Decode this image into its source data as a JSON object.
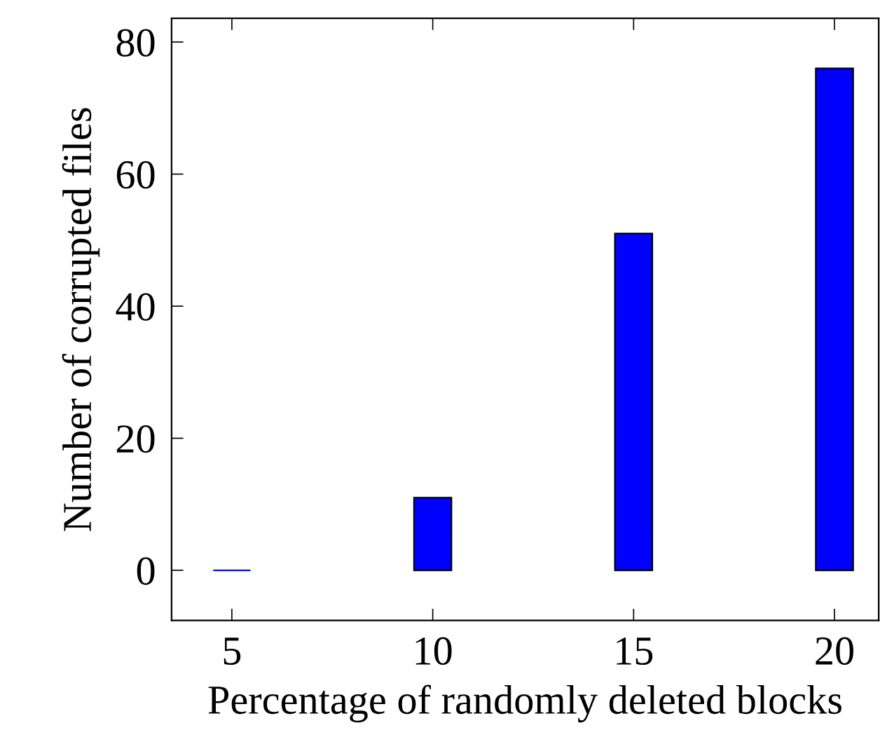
{
  "chart_data": {
    "type": "bar",
    "xlabel": "Percentage of randomly deleted blocks",
    "ylabel": "Number of corrupted files",
    "x": [
      5,
      10,
      15,
      20
    ],
    "values": [
      0,
      11,
      51,
      76
    ],
    "color": "#0000ff",
    "xlim": [
      3.5,
      21.1
    ],
    "xticks": [
      5,
      10,
      15,
      20
    ],
    "ylim": [
      -7.6,
      83.6
    ],
    "yticks": [
      0,
      20,
      40,
      60,
      80
    ],
    "grid": false,
    "legend": false
  }
}
